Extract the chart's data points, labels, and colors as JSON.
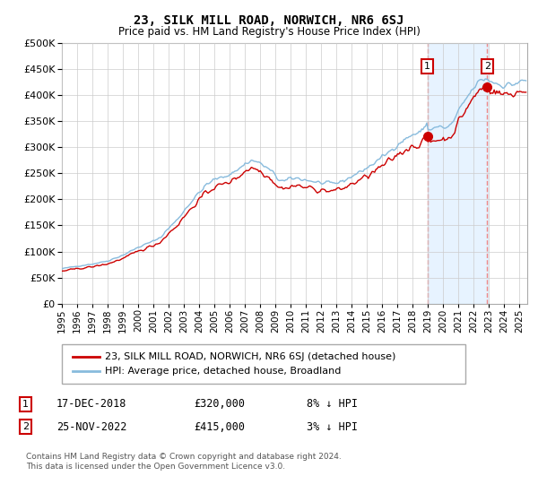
{
  "title": "23, SILK MILL ROAD, NORWICH, NR6 6SJ",
  "subtitle": "Price paid vs. HM Land Registry's House Price Index (HPI)",
  "background_color": "#ffffff",
  "grid_color": "#cccccc",
  "hpi_color": "#88bbdd",
  "hpi_fill_color": "#ddeeff",
  "price_color": "#cc0000",
  "vline_color": "#ee8888",
  "sale1_x": 2018.958,
  "sale1_y": 320000,
  "sale2_x": 2022.875,
  "sale2_y": 415000,
  "sale1_date": "17-DEC-2018",
  "sale1_price": "£320,000",
  "sale1_label": "8% ↓ HPI",
  "sale2_date": "25-NOV-2022",
  "sale2_price": "£415,000",
  "sale2_label": "3% ↓ HPI",
  "legend_label1": "23, SILK MILL ROAD, NORWICH, NR6 6SJ (detached house)",
  "legend_label2": "HPI: Average price, detached house, Broadland",
  "footer": "Contains HM Land Registry data © Crown copyright and database right 2024.\nThis data is licensed under the Open Government Licence v3.0.",
  "ylim": [
    0,
    500000
  ],
  "yticks": [
    0,
    50000,
    100000,
    150000,
    200000,
    250000,
    300000,
    350000,
    400000,
    450000,
    500000
  ],
  "xlim_start": 1995.0,
  "xlim_end": 2025.5
}
